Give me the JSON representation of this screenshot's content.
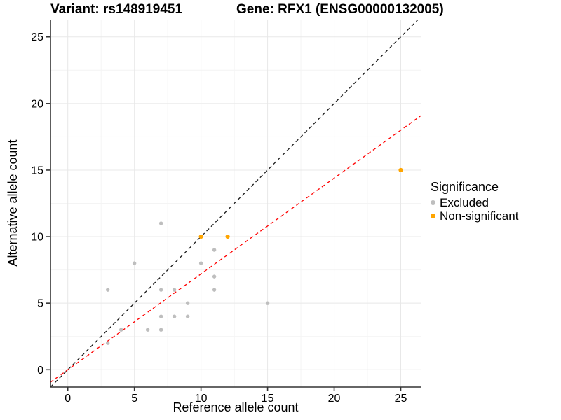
{
  "titles": {
    "variant": "Variant: rs148919451",
    "gene": "Gene: RFX1 (ENSG00000132005)"
  },
  "legend": {
    "title": "Significance",
    "items": [
      {
        "label": "Excluded",
        "color": "#BEBEBE"
      },
      {
        "label": "Non-significant",
        "color": "#FFA500"
      }
    ]
  },
  "colors": {
    "excluded_point": "#BEBEBE",
    "non_significant_point": "#FFA500",
    "identity_line": "#1a1a1a",
    "ratio_line": "#FF0000",
    "grid_major": "#E8E8E8",
    "grid_minor": "#F4F4F4",
    "axis": "#333333"
  },
  "chart_data": {
    "type": "scatter",
    "title": "Variant: rs148919451 | Gene: RFX1 (ENSG00000132005)",
    "xlabel": "Reference allele count",
    "ylabel": "Alternative allele count",
    "xlim": [
      -1.3,
      26.5
    ],
    "ylim": [
      -1.3,
      26.3
    ],
    "xticks": [
      0,
      5,
      10,
      15,
      20,
      25
    ],
    "yticks": [
      0,
      5,
      10,
      15,
      20,
      25
    ],
    "xticks_minor": [
      2.5,
      7.5,
      12.5,
      17.5,
      22.5
    ],
    "yticks_minor": [
      2.5,
      7.5,
      12.5,
      17.5,
      22.5
    ],
    "grid": "major+minor",
    "legend_position": "right",
    "series": [
      {
        "name": "Excluded",
        "color": "#BEBEBE",
        "points": [
          [
            3,
            2
          ],
          [
            3,
            6
          ],
          [
            4,
            3
          ],
          [
            5,
            8
          ],
          [
            6,
            3
          ],
          [
            7,
            3
          ],
          [
            7,
            4
          ],
          [
            7,
            6
          ],
          [
            7,
            11
          ],
          [
            8,
            4
          ],
          [
            8,
            6
          ],
          [
            9,
            4
          ],
          [
            9,
            5
          ],
          [
            10,
            8
          ],
          [
            11,
            6
          ],
          [
            11,
            7
          ],
          [
            11,
            9
          ],
          [
            15,
            5
          ]
        ]
      },
      {
        "name": "Non-significant",
        "color": "#FFA500",
        "points": [
          [
            10,
            10
          ],
          [
            12,
            10
          ],
          [
            25,
            15
          ]
        ]
      }
    ],
    "lines": [
      {
        "name": "identity",
        "color": "#1a1a1a",
        "dashed": true,
        "slope": 1.0,
        "intercept": 0
      },
      {
        "name": "ratio",
        "color": "#FF0000",
        "dashed": true,
        "slope": 0.72,
        "intercept": 0
      }
    ]
  }
}
